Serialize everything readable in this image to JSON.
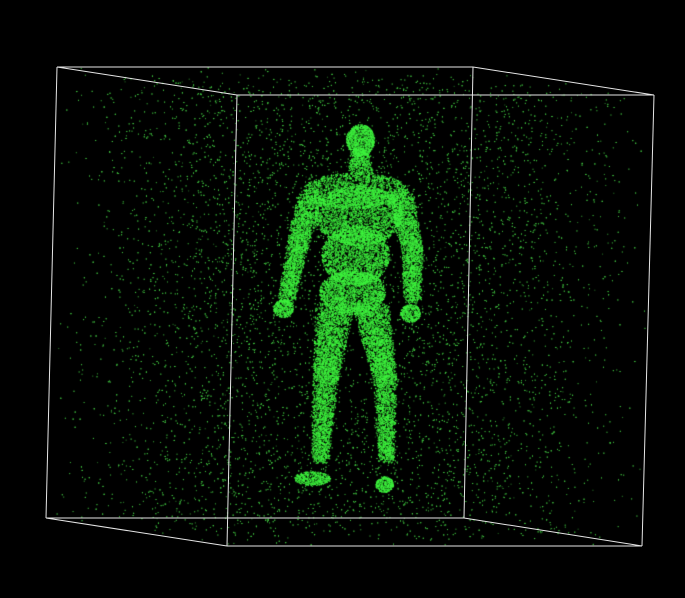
{
  "scene": {
    "background_color": "#000000",
    "point_color": "#3df23d",
    "noise_point_color": "#42c842",
    "bounding_box_color": "#e6e6e6"
  },
  "objects": {
    "figure": {
      "icon": "human-figure-point-cloud"
    },
    "bounding_box": {
      "icon": "wireframe-cube"
    }
  }
}
